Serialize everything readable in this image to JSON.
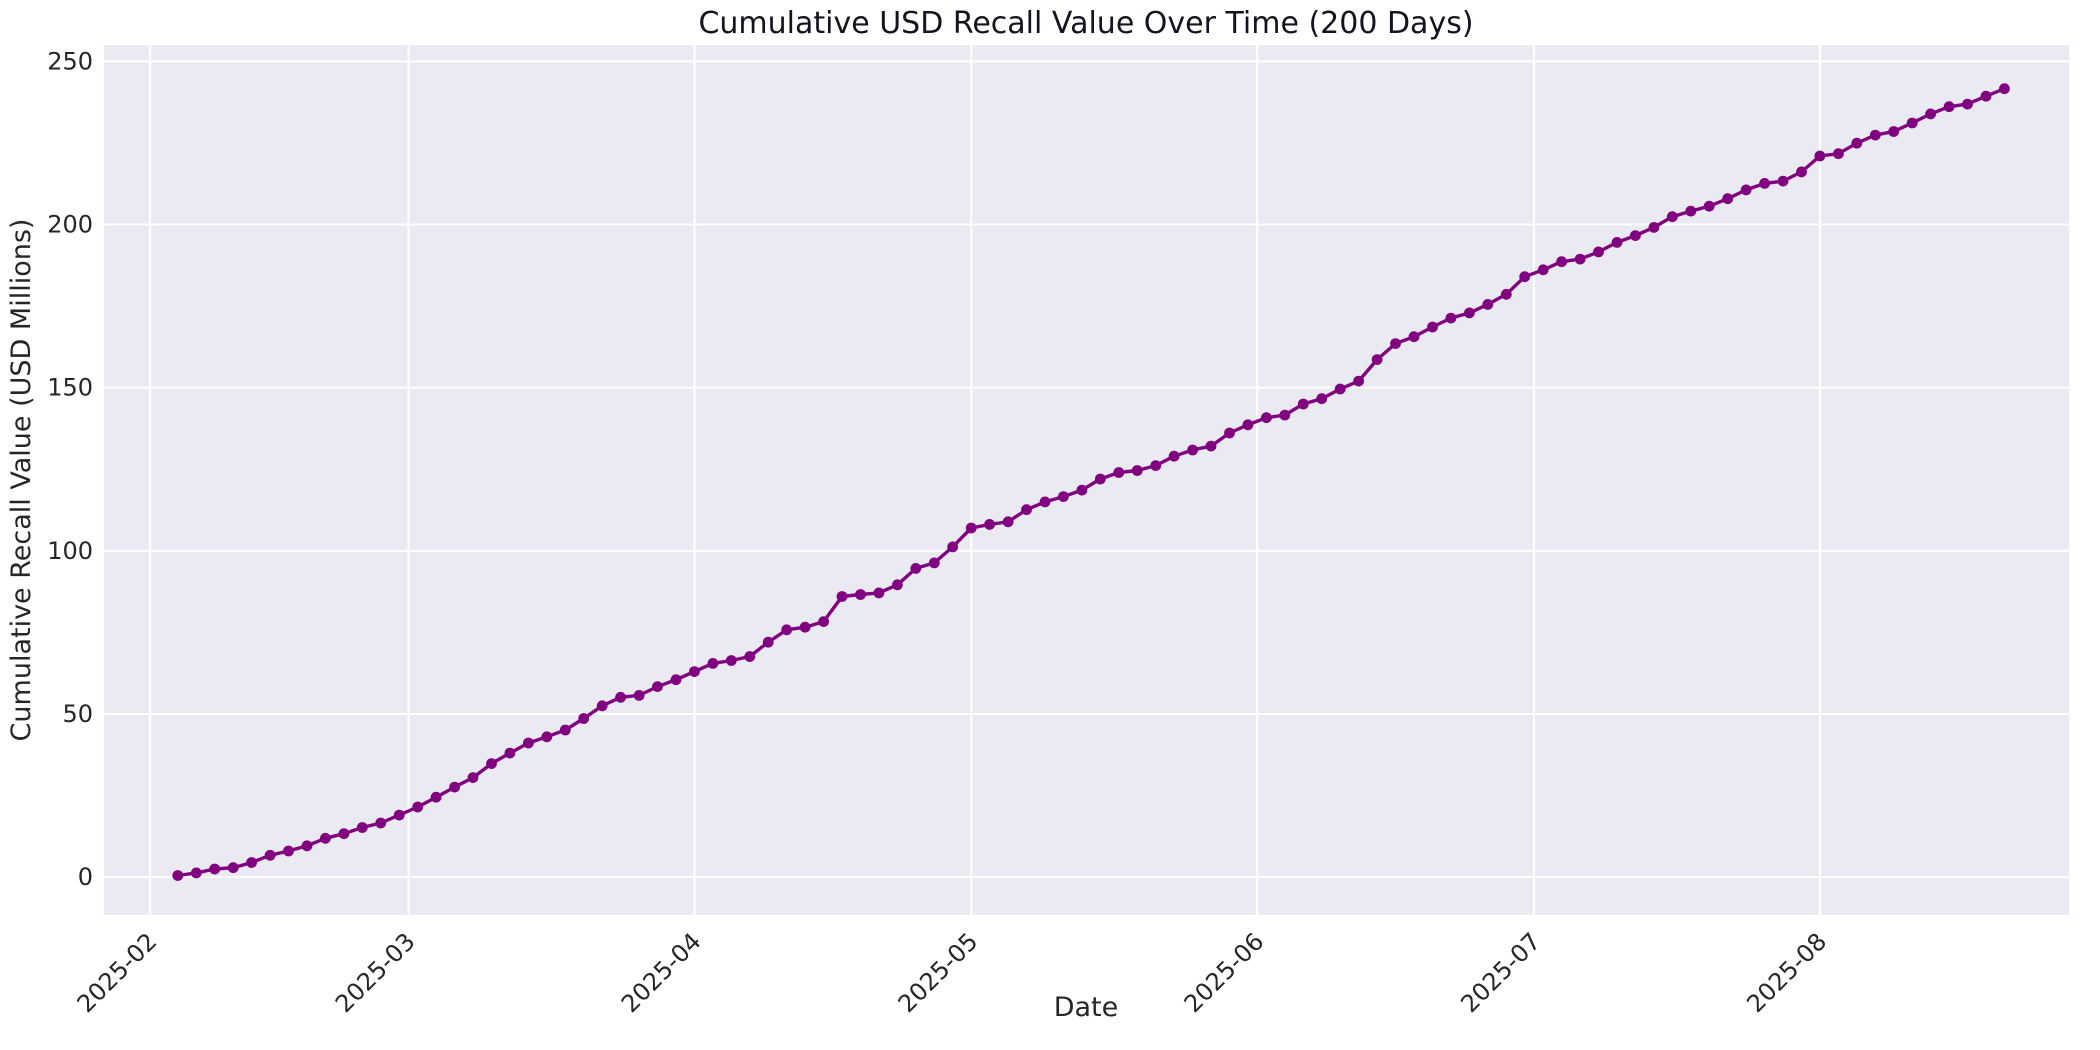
{
  "figure": {
    "title": "Cumulative USD Recall Value Over Time (200 Days)",
    "x_axis_label": "Date",
    "y_axis_label": "Cumulative Recall Value (USD Millions)"
  },
  "chart_data": {
    "type": "line",
    "title": "Cumulative USD Recall Value Over Time (200 Days)",
    "xlabel": "Date",
    "ylabel": "Cumulative Recall Value (USD Millions)",
    "legend": "none",
    "grid": true,
    "marker": "circle",
    "line_color": "#800080",
    "plot_bg_color": "#eaeaf2",
    "grid_color": "#ffffff",
    "text_color": "#262626",
    "x_tick_labels": [
      "2025-02",
      "2025-03",
      "2025-04",
      "2025-05",
      "2025-06",
      "2025-07",
      "2025-08"
    ],
    "x_tick_dates": [
      "2025-02-01",
      "2025-03-01",
      "2025-04-01",
      "2025-05-01",
      "2025-06-01",
      "2025-07-01",
      "2025-08-01"
    ],
    "y_ticks": [
      0,
      50,
      100,
      150,
      200,
      250
    ],
    "ylim": [
      -11.6,
      255.0
    ],
    "xlim_dates": [
      "2025-01-27",
      "2025-08-28"
    ],
    "x": [
      "2025-02-04",
      "2025-02-06",
      "2025-02-08",
      "2025-02-10",
      "2025-02-12",
      "2025-02-14",
      "2025-02-16",
      "2025-02-18",
      "2025-02-20",
      "2025-02-22",
      "2025-02-24",
      "2025-02-26",
      "2025-02-28",
      "2025-03-02",
      "2025-03-04",
      "2025-03-06",
      "2025-03-08",
      "2025-03-10",
      "2025-03-12",
      "2025-03-14",
      "2025-03-16",
      "2025-03-18",
      "2025-03-20",
      "2025-03-22",
      "2025-03-24",
      "2025-03-26",
      "2025-03-28",
      "2025-03-30",
      "2025-04-01",
      "2025-04-03",
      "2025-04-05",
      "2025-04-07",
      "2025-04-09",
      "2025-04-11",
      "2025-04-13",
      "2025-04-15",
      "2025-04-17",
      "2025-04-19",
      "2025-04-21",
      "2025-04-23",
      "2025-04-25",
      "2025-04-27",
      "2025-04-29",
      "2025-05-01",
      "2025-05-03",
      "2025-05-05",
      "2025-05-07",
      "2025-05-09",
      "2025-05-11",
      "2025-05-13",
      "2025-05-15",
      "2025-05-17",
      "2025-05-19",
      "2025-05-21",
      "2025-05-23",
      "2025-05-25",
      "2025-05-27",
      "2025-05-29",
      "2025-05-31",
      "2025-06-02",
      "2025-06-04",
      "2025-06-06",
      "2025-06-08",
      "2025-06-10",
      "2025-06-12",
      "2025-06-14",
      "2025-06-16",
      "2025-06-18",
      "2025-06-20",
      "2025-06-22",
      "2025-06-24",
      "2025-06-26",
      "2025-06-28",
      "2025-06-30",
      "2025-07-02",
      "2025-07-04",
      "2025-07-06",
      "2025-07-08",
      "2025-07-10",
      "2025-07-12",
      "2025-07-14",
      "2025-07-16",
      "2025-07-18",
      "2025-07-20",
      "2025-07-22",
      "2025-07-24",
      "2025-07-26",
      "2025-07-28",
      "2025-07-30",
      "2025-08-01",
      "2025-08-03",
      "2025-08-05",
      "2025-08-07",
      "2025-08-09",
      "2025-08-11",
      "2025-08-13",
      "2025-08-15",
      "2025-08-17",
      "2025-08-19",
      "2025-08-21"
    ],
    "y": [
      0.5,
      1.3,
      2.5,
      2.9,
      4.5,
      6.7,
      8.0,
      9.6,
      11.9,
      13.3,
      15.2,
      16.6,
      19.0,
      21.5,
      24.5,
      27.6,
      30.5,
      34.8,
      38.0,
      41.1,
      43.0,
      45.1,
      48.6,
      52.5,
      55.1,
      55.7,
      58.4,
      60.5,
      63.0,
      65.5,
      66.4,
      67.6,
      72.0,
      75.8,
      76.6,
      78.3,
      86.0,
      86.6,
      87.1,
      89.6,
      94.6,
      96.3,
      101.2,
      107.0,
      108.1,
      108.9,
      112.6,
      115.0,
      116.6,
      118.6,
      122.0,
      124.0,
      124.6,
      126.1,
      129.0,
      130.9,
      132.1,
      136.1,
      138.6,
      140.8,
      141.6,
      145.0,
      146.6,
      149.6,
      152.0,
      158.6,
      163.5,
      165.6,
      168.6,
      171.3,
      172.9,
      175.5,
      178.6,
      184.0,
      186.1,
      188.6,
      189.4,
      191.6,
      194.5,
      196.6,
      199.1,
      202.4,
      204.1,
      205.6,
      207.9,
      210.6,
      212.6,
      213.3,
      216.1,
      221.0,
      221.7,
      224.9,
      227.4,
      228.5,
      231.1,
      233.9,
      236.1,
      236.9,
      239.3,
      241.6
    ]
  }
}
